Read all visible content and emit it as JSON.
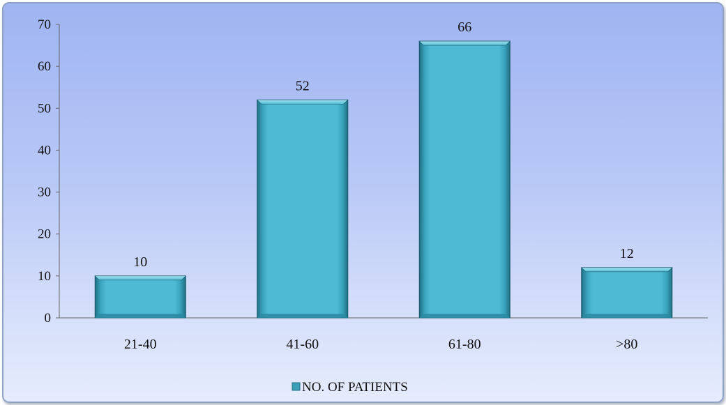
{
  "chart_data": {
    "type": "bar",
    "title": "",
    "xlabel": "",
    "ylabel": "",
    "categories": [
      "21-40",
      "41-60",
      "61-80",
      ">80"
    ],
    "series": [
      {
        "name": "NO. OF PATIENTS",
        "values": [
          10,
          52,
          66,
          12
        ],
        "color": "#4bb6cf"
      }
    ],
    "data_labels": [
      "10",
      "52",
      "66",
      "12"
    ],
    "ylim": [
      0,
      70
    ],
    "yticks": [
      0,
      10,
      20,
      30,
      40,
      50,
      60,
      70
    ],
    "grid": false,
    "legend": {
      "position": "bottom",
      "label": "NO. OF PATIENTS"
    }
  }
}
